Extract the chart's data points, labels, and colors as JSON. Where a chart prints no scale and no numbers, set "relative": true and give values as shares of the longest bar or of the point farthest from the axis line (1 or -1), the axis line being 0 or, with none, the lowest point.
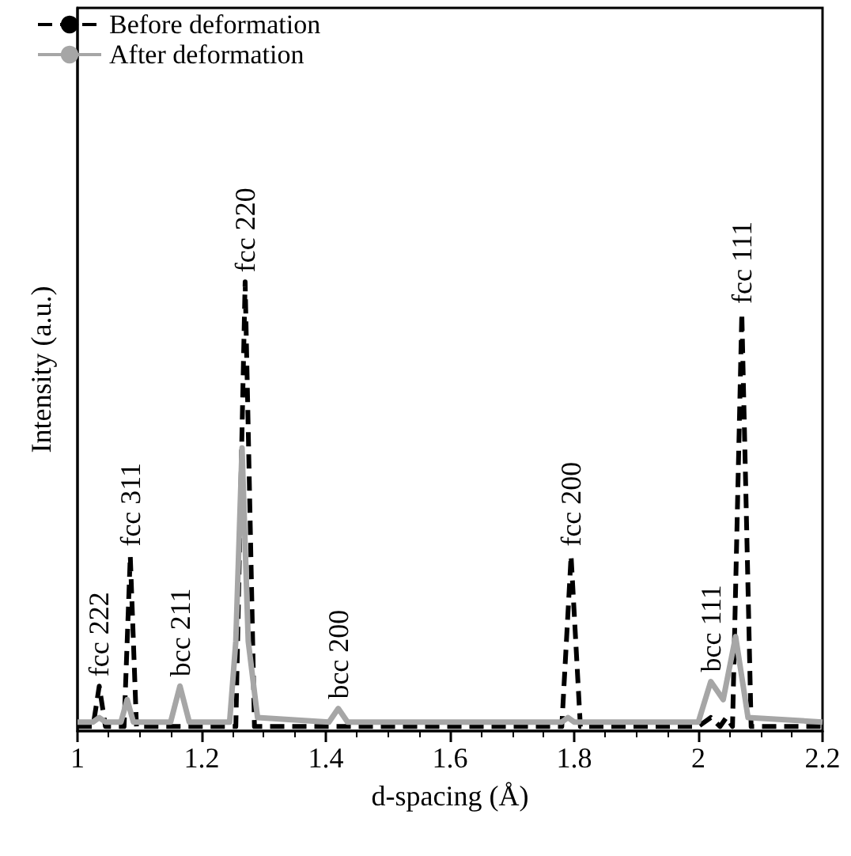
{
  "chart_data": {
    "type": "line",
    "relative": true,
    "xlabel": "d-spacing (Å)",
    "ylabel": "Intensity (a.u.)",
    "xlim": [
      1,
      2.2
    ],
    "xticks": [
      1,
      1.2,
      1.4,
      1.6,
      1.8,
      2,
      2.2
    ],
    "legend": "top left",
    "grid": false,
    "marker": "none",
    "series": [
      {
        "name": "Before deformation",
        "color": "#000000",
        "line_style": "dashed",
        "x": [
          1.0,
          1.025,
          1.035,
          1.045,
          1.075,
          1.085,
          1.095,
          1.255,
          1.27,
          1.285,
          1.78,
          1.795,
          1.81,
          2.0,
          2.02,
          2.035,
          2.045,
          2.055,
          2.07,
          2.085,
          2.2
        ],
        "values": [
          0.01,
          0.01,
          0.1,
          0.01,
          0.01,
          0.39,
          0.01,
          0.01,
          1.0,
          0.01,
          0.01,
          0.39,
          0.01,
          0.01,
          0.03,
          0.01,
          0.03,
          0.01,
          0.93,
          0.01,
          0.01
        ]
      },
      {
        "name": "After deformation",
        "color": "#a6a6a6",
        "line_style": "solid",
        "x": [
          1.0,
          1.025,
          1.035,
          1.045,
          1.07,
          1.08,
          1.09,
          1.15,
          1.165,
          1.18,
          1.245,
          1.255,
          1.265,
          1.275,
          1.29,
          1.405,
          1.42,
          1.435,
          1.78,
          1.79,
          1.8,
          2.0,
          2.02,
          2.04,
          2.06,
          2.08,
          2.2
        ],
        "values": [
          0.02,
          0.02,
          0.03,
          0.02,
          0.02,
          0.07,
          0.02,
          0.02,
          0.1,
          0.02,
          0.02,
          0.2,
          0.63,
          0.2,
          0.03,
          0.02,
          0.05,
          0.02,
          0.02,
          0.03,
          0.02,
          0.02,
          0.11,
          0.07,
          0.21,
          0.03,
          0.02
        ]
      }
    ],
    "annotations": [
      {
        "text": "fcc 222",
        "x": 1.035,
        "y": 0.1
      },
      {
        "text": "fcc 311",
        "x": 1.085,
        "y": 0.39
      },
      {
        "text": "bcc 211",
        "x": 1.165,
        "y": 0.1
      },
      {
        "text": "fcc 220",
        "x": 1.27,
        "y": 1.0
      },
      {
        "text": "bcc 200",
        "x": 1.42,
        "y": 0.05
      },
      {
        "text": "fcc 200",
        "x": 1.795,
        "y": 0.39
      },
      {
        "text": "bcc 111",
        "x": 2.02,
        "y": 0.11
      },
      {
        "text": "fcc 111",
        "x": 2.07,
        "y": 0.93
      }
    ]
  }
}
